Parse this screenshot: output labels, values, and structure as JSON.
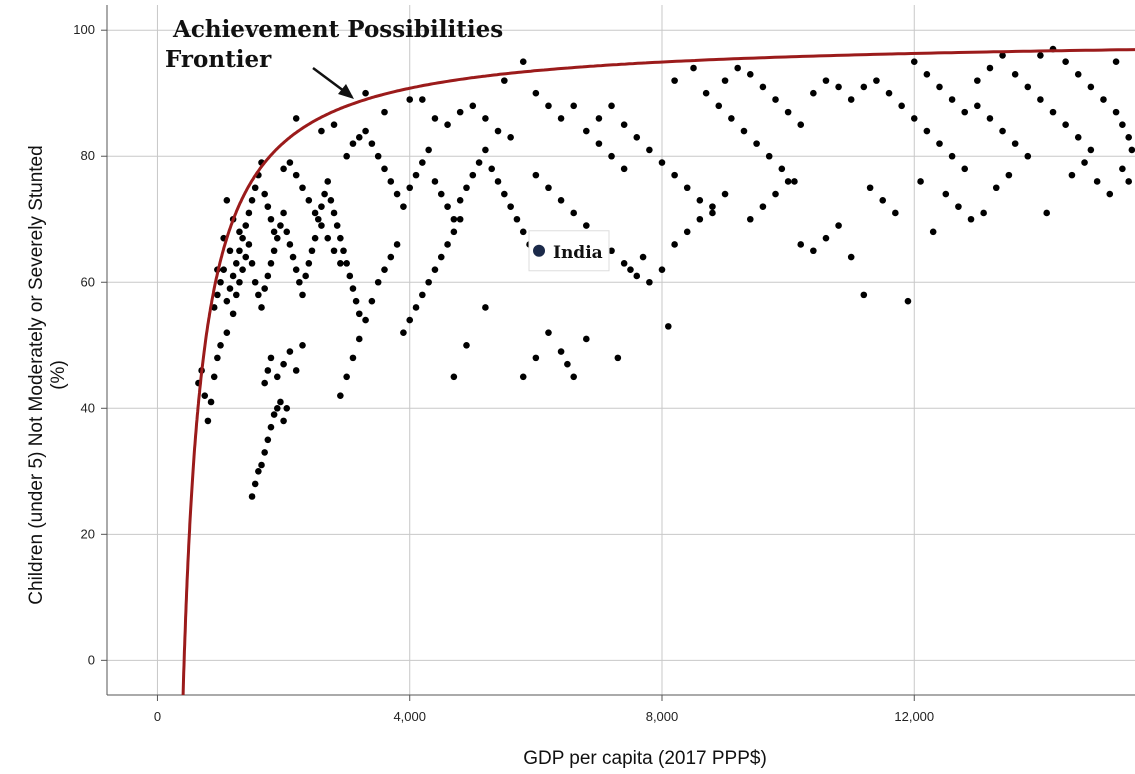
{
  "chart_data": {
    "type": "scatter",
    "xlabel": "GDP per capita (2017 PPP$)",
    "ylabel_lines": [
      "Children (under 5) Not Moderately or Severely Stunted",
      "(%)"
    ],
    "xlim": [
      -800,
      15500
    ],
    "ylim": [
      -5.5,
      104
    ],
    "x_ticks": [
      0,
      4000,
      8000,
      12000
    ],
    "x_tick_labels": [
      "0",
      "4,000",
      "8,000",
      "12,000"
    ],
    "y_ticks": [
      0,
      20,
      40,
      60,
      80,
      100
    ],
    "y_tick_labels": [
      "0",
      "20",
      "40",
      "60",
      "80",
      "100"
    ],
    "grid": true,
    "point_color": "#000000",
    "frontier": {
      "label_lines": [
        "Achievement Possibilities",
        "Frontier"
      ],
      "color": "#9b1b1b",
      "asymptote": 99,
      "k": 320,
      "x0": 100
    },
    "highlight": {
      "label": "India",
      "x": 6050,
      "y": 65,
      "color": "#1c2a4a"
    },
    "points": [
      [
        1500,
        26
      ],
      [
        1550,
        28
      ],
      [
        1600,
        30
      ],
      [
        1650,
        31
      ],
      [
        1700,
        33
      ],
      [
        1750,
        35
      ],
      [
        1800,
        37
      ],
      [
        1850,
        39
      ],
      [
        1900,
        40
      ],
      [
        1950,
        41
      ],
      [
        2000,
        38
      ],
      [
        2050,
        40
      ],
      [
        1700,
        44
      ],
      [
        1750,
        46
      ],
      [
        1800,
        48
      ],
      [
        1900,
        45
      ],
      [
        2000,
        47
      ],
      [
        2100,
        49
      ],
      [
        2200,
        46
      ],
      [
        2300,
        50
      ],
      [
        650,
        44
      ],
      [
        700,
        46
      ],
      [
        750,
        42
      ],
      [
        800,
        38
      ],
      [
        850,
        41
      ],
      [
        900,
        45
      ],
      [
        950,
        48
      ],
      [
        1000,
        50
      ],
      [
        1100,
        52
      ],
      [
        1200,
        55
      ],
      [
        1250,
        58
      ],
      [
        1300,
        60
      ],
      [
        1350,
        62
      ],
      [
        1400,
        64
      ],
      [
        1450,
        66
      ],
      [
        1500,
        63
      ],
      [
        1550,
        60
      ],
      [
        1600,
        58
      ],
      [
        1650,
        56
      ],
      [
        1700,
        59
      ],
      [
        1750,
        61
      ],
      [
        1800,
        63
      ],
      [
        1850,
        65
      ],
      [
        1900,
        67
      ],
      [
        1950,
        69
      ],
      [
        2000,
        71
      ],
      [
        2050,
        68
      ],
      [
        2100,
        66
      ],
      [
        2150,
        64
      ],
      [
        2200,
        62
      ],
      [
        2250,
        60
      ],
      [
        2300,
        58
      ],
      [
        2350,
        61
      ],
      [
        2400,
        63
      ],
      [
        2450,
        65
      ],
      [
        2500,
        67
      ],
      [
        2550,
        70
      ],
      [
        2600,
        72
      ],
      [
        2650,
        74
      ],
      [
        2700,
        76
      ],
      [
        2750,
        73
      ],
      [
        2800,
        71
      ],
      [
        2850,
        69
      ],
      [
        2900,
        67
      ],
      [
        2950,
        65
      ],
      [
        3000,
        63
      ],
      [
        3050,
        61
      ],
      [
        3100,
        59
      ],
      [
        3150,
        57
      ],
      [
        3200,
        55
      ],
      [
        900,
        56
      ],
      [
        950,
        58
      ],
      [
        1000,
        60
      ],
      [
        1050,
        62
      ],
      [
        1100,
        57
      ],
      [
        1150,
        59
      ],
      [
        1200,
        61
      ],
      [
        1250,
        63
      ],
      [
        1300,
        65
      ],
      [
        1350,
        67
      ],
      [
        1400,
        69
      ],
      [
        1450,
        71
      ],
      [
        1500,
        73
      ],
      [
        1550,
        75
      ],
      [
        1600,
        77
      ],
      [
        1650,
        79
      ],
      [
        1700,
        74
      ],
      [
        1750,
        72
      ],
      [
        1800,
        70
      ],
      [
        1850,
        68
      ],
      [
        2000,
        78
      ],
      [
        2100,
        79
      ],
      [
        2200,
        77
      ],
      [
        2300,
        75
      ],
      [
        2400,
        73
      ],
      [
        2500,
        71
      ],
      [
        2600,
        69
      ],
      [
        2700,
        67
      ],
      [
        2800,
        65
      ],
      [
        2900,
        63
      ],
      [
        3000,
        80
      ],
      [
        3100,
        82
      ],
      [
        3200,
        83
      ],
      [
        3300,
        84
      ],
      [
        3400,
        82
      ],
      [
        3500,
        80
      ],
      [
        3600,
        78
      ],
      [
        3700,
        76
      ],
      [
        3800,
        74
      ],
      [
        3900,
        72
      ],
      [
        2900,
        42
      ],
      [
        3000,
        45
      ],
      [
        3100,
        48
      ],
      [
        3200,
        51
      ],
      [
        3300,
        54
      ],
      [
        3400,
        57
      ],
      [
        3500,
        60
      ],
      [
        3600,
        62
      ],
      [
        3700,
        64
      ],
      [
        3800,
        66
      ],
      [
        3900,
        52
      ],
      [
        4000,
        54
      ],
      [
        4100,
        56
      ],
      [
        4200,
        58
      ],
      [
        4300,
        60
      ],
      [
        4400,
        62
      ],
      [
        4500,
        64
      ],
      [
        4600,
        66
      ],
      [
        4700,
        68
      ],
      [
        4800,
        70
      ],
      [
        3600,
        87
      ],
      [
        4000,
        89
      ],
      [
        4200,
        89
      ],
      [
        4400,
        86
      ],
      [
        4600,
        85
      ],
      [
        4800,
        87
      ],
      [
        5000,
        88
      ],
      [
        5200,
        86
      ],
      [
        5400,
        84
      ],
      [
        5600,
        83
      ],
      [
        4000,
        75
      ],
      [
        4100,
        77
      ],
      [
        4200,
        79
      ],
      [
        4300,
        81
      ],
      [
        4400,
        76
      ],
      [
        4500,
        74
      ],
      [
        4600,
        72
      ],
      [
        4700,
        70
      ],
      [
        4800,
        73
      ],
      [
        4900,
        75
      ],
      [
        5000,
        77
      ],
      [
        5100,
        79
      ],
      [
        5200,
        81
      ],
      [
        5300,
        78
      ],
      [
        5400,
        76
      ],
      [
        5500,
        74
      ],
      [
        5600,
        72
      ],
      [
        5700,
        70
      ],
      [
        5800,
        68
      ],
      [
        5900,
        66
      ],
      [
        4700,
        45
      ],
      [
        4900,
        50
      ],
      [
        5200,
        56
      ],
      [
        5800,
        45
      ],
      [
        6000,
        48
      ],
      [
        6200,
        52
      ],
      [
        6400,
        49
      ],
      [
        6500,
        47
      ],
      [
        6600,
        45
      ],
      [
        6800,
        51
      ],
      [
        5500,
        92
      ],
      [
        5800,
        95
      ],
      [
        6000,
        90
      ],
      [
        6200,
        88
      ],
      [
        6400,
        86
      ],
      [
        6600,
        88
      ],
      [
        6800,
        84
      ],
      [
        7000,
        82
      ],
      [
        7200,
        80
      ],
      [
        7400,
        78
      ],
      [
        6000,
        77
      ],
      [
        6200,
        75
      ],
      [
        6400,
        73
      ],
      [
        6600,
        71
      ],
      [
        6800,
        69
      ],
      [
        7000,
        67
      ],
      [
        7200,
        65
      ],
      [
        7400,
        63
      ],
      [
        7600,
        61
      ],
      [
        7800,
        60
      ],
      [
        7000,
        86
      ],
      [
        7200,
        88
      ],
      [
        7400,
        85
      ],
      [
        7600,
        83
      ],
      [
        7800,
        81
      ],
      [
        8000,
        79
      ],
      [
        8200,
        77
      ],
      [
        8400,
        75
      ],
      [
        8600,
        73
      ],
      [
        8800,
        71
      ],
      [
        7300,
        48
      ],
      [
        7500,
        62
      ],
      [
        7700,
        64
      ],
      [
        8000,
        62
      ],
      [
        8100,
        53
      ],
      [
        8200,
        66
      ],
      [
        8400,
        68
      ],
      [
        8600,
        70
      ],
      [
        8800,
        72
      ],
      [
        9000,
        74
      ],
      [
        8200,
        92
      ],
      [
        8500,
        94
      ],
      [
        8700,
        90
      ],
      [
        8900,
        88
      ],
      [
        9100,
        86
      ],
      [
        9300,
        84
      ],
      [
        9500,
        82
      ],
      [
        9700,
        80
      ],
      [
        9900,
        78
      ],
      [
        10100,
        76
      ],
      [
        9000,
        92
      ],
      [
        9200,
        94
      ],
      [
        9400,
        93
      ],
      [
        9600,
        91
      ],
      [
        9800,
        89
      ],
      [
        10000,
        87
      ],
      [
        10200,
        85
      ],
      [
        10400,
        90
      ],
      [
        10600,
        92
      ],
      [
        10800,
        91
      ],
      [
        9400,
        70
      ],
      [
        9600,
        72
      ],
      [
        9800,
        74
      ],
      [
        10000,
        76
      ],
      [
        10200,
        66
      ],
      [
        10400,
        65
      ],
      [
        10600,
        67
      ],
      [
        10800,
        69
      ],
      [
        11000,
        64
      ],
      [
        11200,
        58
      ],
      [
        11000,
        89
      ],
      [
        11200,
        91
      ],
      [
        11400,
        92
      ],
      [
        11600,
        90
      ],
      [
        11800,
        88
      ],
      [
        12000,
        86
      ],
      [
        12200,
        84
      ],
      [
        12400,
        82
      ],
      [
        12600,
        80
      ],
      [
        12800,
        78
      ],
      [
        11300,
        75
      ],
      [
        11500,
        73
      ],
      [
        11700,
        71
      ],
      [
        11900,
        57
      ],
      [
        12100,
        76
      ],
      [
        12300,
        68
      ],
      [
        12500,
        74
      ],
      [
        12700,
        72
      ],
      [
        12900,
        70
      ],
      [
        13100,
        71
      ],
      [
        12000,
        95
      ],
      [
        12200,
        93
      ],
      [
        12400,
        91
      ],
      [
        12600,
        89
      ],
      [
        12800,
        87
      ],
      [
        13000,
        88
      ],
      [
        13200,
        86
      ],
      [
        13400,
        84
      ],
      [
        13600,
        82
      ],
      [
        13800,
        80
      ],
      [
        13000,
        92
      ],
      [
        13200,
        94
      ],
      [
        13400,
        96
      ],
      [
        13600,
        93
      ],
      [
        13800,
        91
      ],
      [
        14000,
        89
      ],
      [
        14200,
        87
      ],
      [
        14400,
        85
      ],
      [
        14600,
        83
      ],
      [
        14800,
        81
      ],
      [
        14000,
        96
      ],
      [
        14200,
        97
      ],
      [
        14400,
        95
      ],
      [
        14600,
        93
      ],
      [
        14800,
        91
      ],
      [
        15000,
        89
      ],
      [
        15200,
        87
      ],
      [
        15300,
        85
      ],
      [
        15400,
        83
      ],
      [
        15450,
        81
      ],
      [
        14500,
        77
      ],
      [
        14700,
        79
      ],
      [
        14900,
        76
      ],
      [
        15100,
        74
      ],
      [
        15300,
        78
      ],
      [
        15400,
        76
      ],
      [
        13500,
        77
      ],
      [
        13300,
        75
      ],
      [
        14100,
        71
      ],
      [
        15200,
        95
      ],
      [
        2200,
        86
      ],
      [
        2600,
        84
      ],
      [
        2800,
        85
      ],
      [
        3300,
        90
      ],
      [
        1100,
        73
      ],
      [
        1200,
        70
      ],
      [
        1300,
        68
      ],
      [
        1150,
        65
      ],
      [
        1050,
        67
      ],
      [
        950,
        62
      ]
    ]
  }
}
